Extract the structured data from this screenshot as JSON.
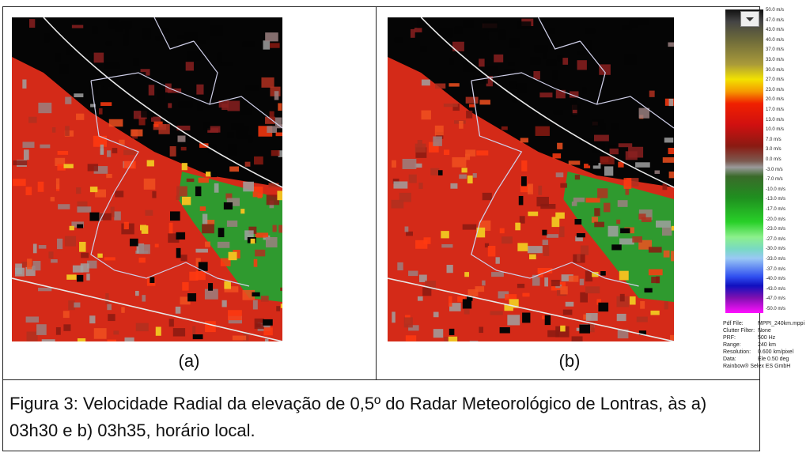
{
  "figure": {
    "panels": [
      {
        "label": "(a)"
      },
      {
        "label": "(b)"
      }
    ],
    "colorbar": {
      "labels": [
        "50.0 m/s",
        "47.0 m/s",
        "43.0 m/s",
        "40.0 m/s",
        "37.0 m/s",
        "33.0 m/s",
        "30.0 m/s",
        "27.0 m/s",
        "23.0 m/s",
        "20.0 m/s",
        "17.0 m/s",
        "13.0 m/s",
        "10.0 m/s",
        "7.0 m/s",
        "3.0 m/s",
        "0.0 m/s",
        "-3.0 m/s",
        "-7.0 m/s",
        "-10.0 m/s",
        "-13.0 m/s",
        "-17.0 m/s",
        "-20.0 m/s",
        "-23.0 m/s",
        "-27.0 m/s",
        "-30.0 m/s",
        "-33.0 m/s",
        "-37.0 m/s",
        "-40.0 m/s",
        "-43.0 m/s",
        "-47.0 m/s",
        "-50.0 m/s"
      ]
    },
    "info": [
      [
        "Pdf File:",
        "MPPI_240km.mppi"
      ],
      [
        "Clutter Filter:",
        "None"
      ],
      [
        "PRF:",
        "500 Hz"
      ],
      [
        "Range:",
        "240 km"
      ],
      [
        "Resolution:",
        "0.600 km/pixel"
      ],
      [
        "Data:",
        "Ele 0.50 deg"
      ]
    ],
    "credit": "Rainbow® Selex ES GmbH",
    "caption": "Figura 3: Velocidade Radial da elevação de 0,5º do Radar Meteorológico de Lontras, às a) 03h30 e b) 03h35, horário local."
  }
}
